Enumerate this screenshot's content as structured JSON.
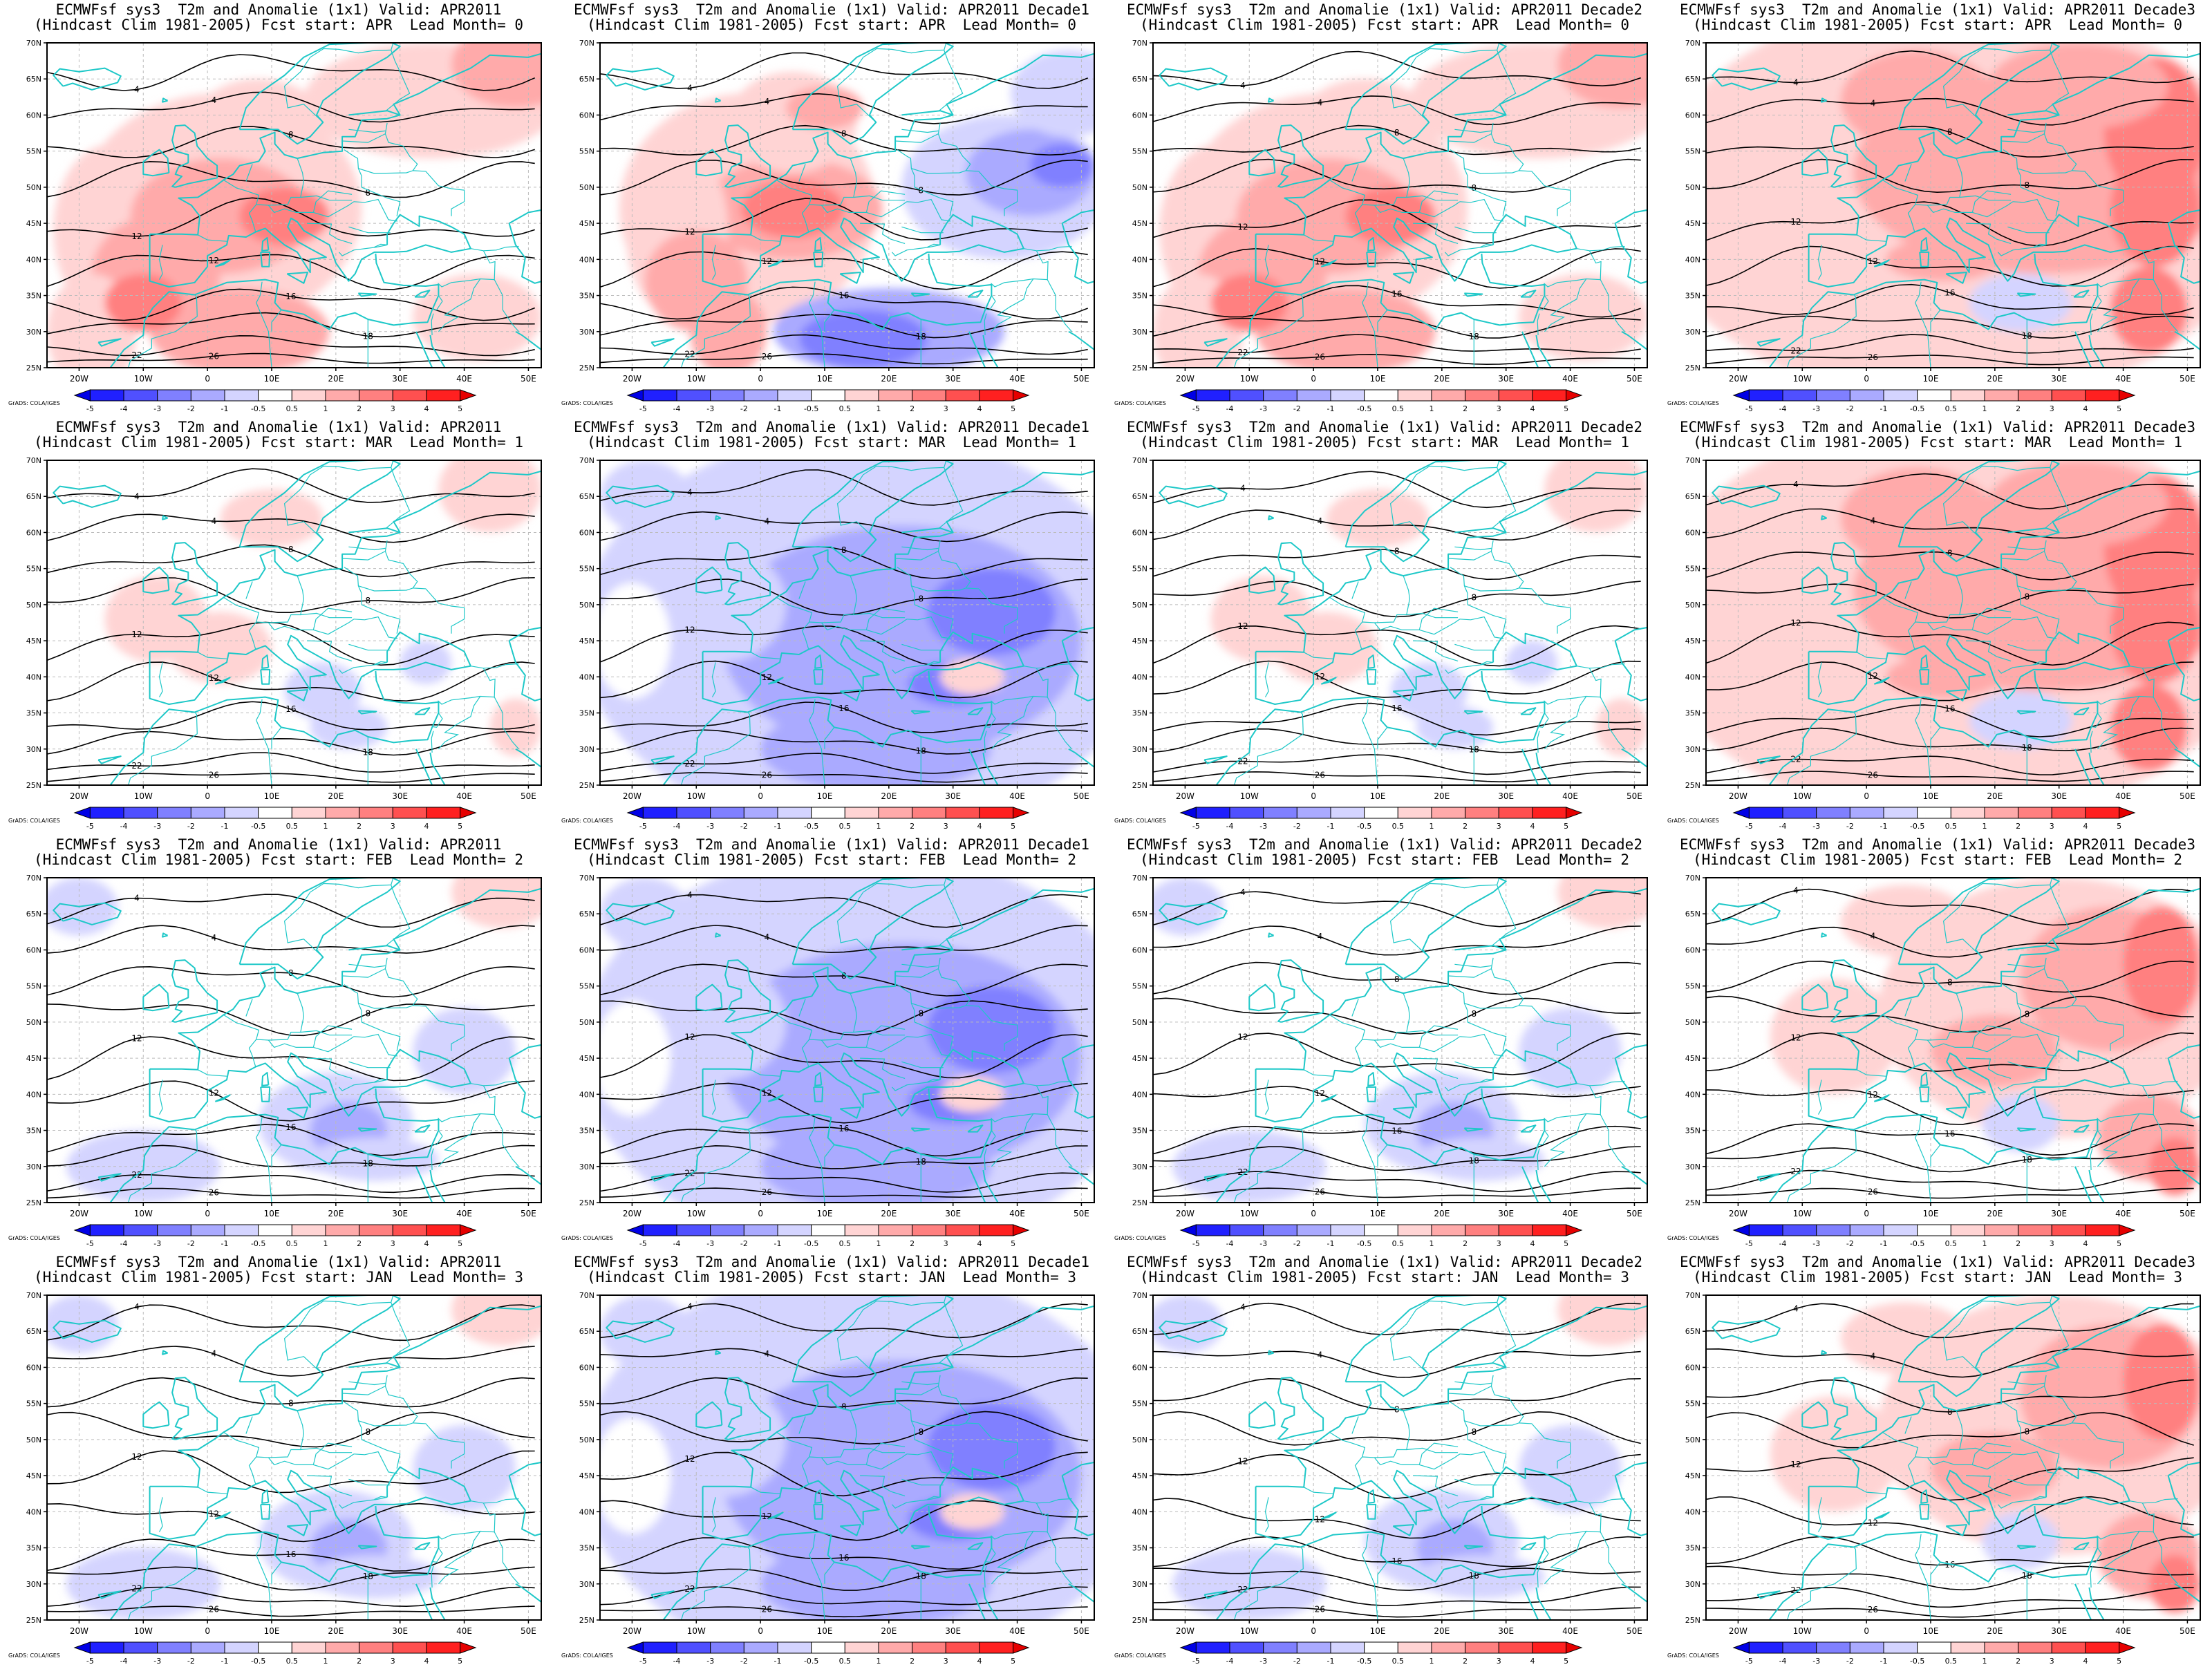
{
  "figure": {
    "columns": [
      "APR2011",
      "APR2011 Decade1",
      "APR2011 Decade2",
      "APR2011 Decade3"
    ],
    "rows": [
      {
        "fcst_start": "APR",
        "lead_month": 0
      },
      {
        "fcst_start": "MAR",
        "lead_month": 1
      },
      {
        "fcst_start": "FEB",
        "lead_month": 2
      },
      {
        "fcst_start": "JAN",
        "lead_month": 3
      }
    ],
    "panels": [
      {
        "title1": "ECMWFsf sys3  T2m and Anomalie (1x1) Valid: APR2011",
        "title2": "(Hindcast Clim 1981-2005) Fcst start: APR  Lead Month= 0",
        "anomaly_pattern": "warm-west"
      },
      {
        "title1": "ECMWFsf sys3  T2m and Anomalie (1x1) Valid: APR2011 Decade1",
        "title2": "(Hindcast Clim 1981-2005) Fcst start: APR  Lead Month= 0",
        "anomaly_pattern": "warm-west-cold-east"
      },
      {
        "title1": "ECMWFsf sys3  T2m and Anomalie (1x1) Valid: APR2011 Decade2",
        "title2": "(Hindcast Clim 1981-2005) Fcst start: APR  Lead Month= 0",
        "anomaly_pattern": "warm-west"
      },
      {
        "title1": "ECMWFsf sys3  T2m and Anomalie (1x1) Valid: APR2011 Decade3",
        "title2": "(Hindcast Clim 1981-2005) Fcst start: APR  Lead Month= 0",
        "anomaly_pattern": "warm-all"
      },
      {
        "title1": "ECMWFsf sys3  T2m and Anomalie (1x1) Valid: APR2011",
        "title2": "(Hindcast Clim 1981-2005) Fcst start: MAR  Lead Month= 1",
        "anomaly_pattern": "weak-mixed"
      },
      {
        "title1": "ECMWFsf sys3  T2m and Anomalie (1x1) Valid: APR2011 Decade1",
        "title2": "(Hindcast Clim 1981-2005) Fcst start: MAR  Lead Month= 1",
        "anomaly_pattern": "cold-all"
      },
      {
        "title1": "ECMWFsf sys3  T2m and Anomalie (1x1) Valid: APR2011 Decade2",
        "title2": "(Hindcast Clim 1981-2005) Fcst start: MAR  Lead Month= 1",
        "anomaly_pattern": "weak-mixed"
      },
      {
        "title1": "ECMWFsf sys3  T2m and Anomalie (1x1) Valid: APR2011 Decade3",
        "title2": "(Hindcast Clim 1981-2005) Fcst start: MAR  Lead Month= 1",
        "anomaly_pattern": "warm-all"
      },
      {
        "title1": "ECMWFsf sys3  T2m and Anomalie (1x1) Valid: APR2011",
        "title2": "(Hindcast Clim 1981-2005) Fcst start: FEB  Lead Month= 2",
        "anomaly_pattern": "weak-cold-center"
      },
      {
        "title1": "ECMWFsf sys3  T2m and Anomalie (1x1) Valid: APR2011 Decade1",
        "title2": "(Hindcast Clim 1981-2005) Fcst start: FEB  Lead Month= 2",
        "anomaly_pattern": "cold-all"
      },
      {
        "title1": "ECMWFsf sys3  T2m and Anomalie (1x1) Valid: APR2011 Decade2",
        "title2": "(Hindcast Clim 1981-2005) Fcst start: FEB  Lead Month= 2",
        "anomaly_pattern": "weak-cold-center"
      },
      {
        "title1": "ECMWFsf sys3  T2m and Anomalie (1x1) Valid: APR2011 Decade3",
        "title2": "(Hindcast Clim 1981-2005) Fcst start: FEB  Lead Month= 2",
        "anomaly_pattern": "warm-east"
      },
      {
        "title1": "ECMWFsf sys3  T2m and Anomalie (1x1) Valid: APR2011",
        "title2": "(Hindcast Clim 1981-2005) Fcst start: JAN  Lead Month= 3",
        "anomaly_pattern": "weak-cold-center"
      },
      {
        "title1": "ECMWFsf sys3  T2m and Anomalie (1x1) Valid: APR2011 Decade1",
        "title2": "(Hindcast Clim 1981-2005) Fcst start: JAN  Lead Month= 3",
        "anomaly_pattern": "cold-all"
      },
      {
        "title1": "ECMWFsf sys3  T2m and Anomalie (1x1) Valid: APR2011 Decade2",
        "title2": "(Hindcast Clim 1981-2005) Fcst start: JAN  Lead Month= 3",
        "anomaly_pattern": "weak-cold-center"
      },
      {
        "title1": "ECMWFsf sys3  T2m and Anomalie (1x1) Valid: APR2011 Decade3",
        "title2": "(Hindcast Clim 1981-2005) Fcst start: JAN  Lead Month= 3",
        "anomaly_pattern": "warm-east"
      }
    ],
    "map": {
      "lon_range": [
        -25,
        52
      ],
      "lat_range": [
        25,
        70
      ],
      "lon_ticks": [
        "20W",
        "10W",
        "0",
        "10E",
        "20E",
        "30E",
        "40E",
        "50E"
      ],
      "lon_tick_values": [
        -20,
        -10,
        0,
        10,
        20,
        30,
        40,
        50
      ],
      "lat_ticks": [
        "25N",
        "30N",
        "35N",
        "40N",
        "45N",
        "50N",
        "55N",
        "60N",
        "65N",
        "70N"
      ],
      "lat_tick_values": [
        25,
        30,
        35,
        40,
        45,
        50,
        55,
        60,
        65,
        70
      ],
      "contour_labels": [
        "4",
        "8",
        "12",
        "16",
        "18",
        "22",
        "26"
      ]
    },
    "colorbar": {
      "labels": [
        "-5",
        "-4",
        "-3",
        "-2",
        "-1",
        "-0.5",
        "0.5",
        "1",
        "2",
        "3",
        "4",
        "5"
      ],
      "colors": [
        "#0000e6",
        "#2020ff",
        "#5050ff",
        "#8080ff",
        "#aaaaff",
        "#d4d4ff",
        "#ffffff",
        "#ffd4d4",
        "#ffaaaa",
        "#ff8080",
        "#ff5050",
        "#ff2020",
        "#e60000"
      ]
    },
    "credit": "GrADS: COLA/IGES",
    "colors": {
      "coastline": "#1ec8c8",
      "contour": "#000000",
      "frame": "#000000"
    }
  }
}
